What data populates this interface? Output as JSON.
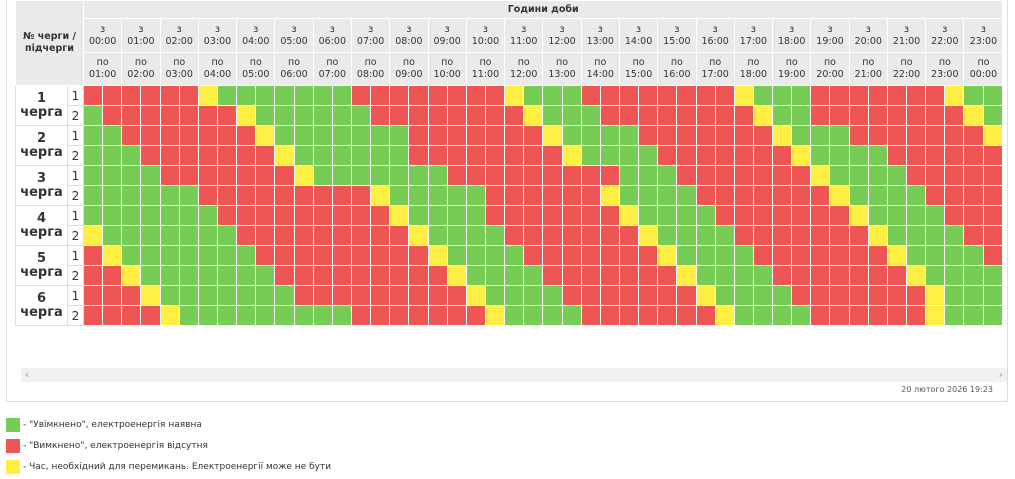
{
  "header": {
    "corner": "№ черги / підчерги",
    "title": "Години доби",
    "from_prefix": "з",
    "to_prefix": "по",
    "hours_from": [
      "00:00",
      "01:00",
      "02:00",
      "03:00",
      "04:00",
      "05:00",
      "06:00",
      "07:00",
      "08:00",
      "09:00",
      "10:00",
      "11:00",
      "12:00",
      "13:00",
      "14:00",
      "15:00",
      "16:00",
      "17:00",
      "18:00",
      "19:00",
      "20:00",
      "21:00",
      "22:00",
      "23:00"
    ],
    "hours_to": [
      "01:00",
      "02:00",
      "03:00",
      "04:00",
      "05:00",
      "06:00",
      "07:00",
      "08:00",
      "09:00",
      "10:00",
      "11:00",
      "12:00",
      "13:00",
      "14:00",
      "15:00",
      "16:00",
      "17:00",
      "18:00",
      "19:00",
      "20:00",
      "21:00",
      "22:00",
      "23:00",
      "00:00"
    ]
  },
  "queues": [
    {
      "label": "1 черга",
      "subqueues": [
        {
          "label": "1",
          "cells": [
            "#e55",
            "#e55",
            "#e55",
            "#e55",
            "#e55",
            "#e55",
            "#fe4",
            "#7c5",
            "#7c5",
            "#7c5",
            "#7c5",
            "#7c5",
            "#7c5",
            "#7c5",
            "#e55",
            "#e55",
            "#e55",
            "#e55",
            "#e55",
            "#e55",
            "#e55",
            "#e55",
            "#fe4",
            "#7c5",
            "#7c5",
            "#7c5",
            "#e55",
            "#e55",
            "#e55",
            "#e55",
            "#e55",
            "#e55",
            "#e55",
            "#e55",
            "#fe4",
            "#7c5",
            "#7c5",
            "#7c5",
            "#e55",
            "#e55",
            "#e55",
            "#e55",
            "#e55",
            "#e55",
            "#e55",
            "#fe4",
            "#7c5",
            "#7c5"
          ]
        },
        {
          "label": "2",
          "cells": [
            "#7c5",
            "#e55",
            "#e55",
            "#e55",
            "#e55",
            "#e55",
            "#e55",
            "#e55",
            "#fe4",
            "#7c5",
            "#7c5",
            "#7c5",
            "#7c5",
            "#7c5",
            "#7c5",
            "#e55",
            "#e55",
            "#e55",
            "#e55",
            "#e55",
            "#e55",
            "#e55",
            "#e55",
            "#fe4",
            "#7c5",
            "#7c5",
            "#7c5",
            "#e55",
            "#e55",
            "#e55",
            "#e55",
            "#e55",
            "#e55",
            "#e55",
            "#e55",
            "#fe4",
            "#7c5",
            "#7c5",
            "#e55",
            "#e55",
            "#e55",
            "#e55",
            "#e55",
            "#e55",
            "#e55",
            "#e55",
            "#fe4",
            "#7c5"
          ]
        }
      ]
    },
    {
      "label": "2 черга",
      "subqueues": [
        {
          "label": "1",
          "cells": [
            "#7c5",
            "#7c5",
            "#e55",
            "#e55",
            "#e55",
            "#e55",
            "#e55",
            "#e55",
            "#e55",
            "#fe4",
            "#7c5",
            "#7c5",
            "#7c5",
            "#7c5",
            "#7c5",
            "#7c5",
            "#7c5",
            "#e55",
            "#e55",
            "#e55",
            "#e55",
            "#e55",
            "#e55",
            "#e55",
            "#fe4",
            "#7c5",
            "#7c5",
            "#7c5",
            "#7c5",
            "#e55",
            "#e55",
            "#e55",
            "#e55",
            "#e55",
            "#e55",
            "#e55",
            "#fe4",
            "#7c5",
            "#7c5",
            "#7c5",
            "#e55",
            "#e55",
            "#e55",
            "#e55",
            "#e55",
            "#e55",
            "#e55",
            "#fe4"
          ]
        },
        {
          "label": "2",
          "cells": [
            "#7c5",
            "#7c5",
            "#7c5",
            "#e55",
            "#e55",
            "#e55",
            "#e55",
            "#e55",
            "#e55",
            "#e55",
            "#fe4",
            "#7c5",
            "#7c5",
            "#7c5",
            "#7c5",
            "#7c5",
            "#7c5",
            "#e55",
            "#e55",
            "#e55",
            "#e55",
            "#e55",
            "#e55",
            "#e55",
            "#e55",
            "#fe4",
            "#7c5",
            "#7c5",
            "#7c5",
            "#7c5",
            "#e55",
            "#e55",
            "#e55",
            "#e55",
            "#e55",
            "#e55",
            "#e55",
            "#fe4",
            "#7c5",
            "#7c5",
            "#7c5",
            "#7c5",
            "#e55",
            "#e55",
            "#e55",
            "#e55",
            "#e55",
            "#e55"
          ]
        }
      ]
    },
    {
      "label": "3 черга",
      "subqueues": [
        {
          "label": "1",
          "cells": [
            "#7c5",
            "#7c5",
            "#7c5",
            "#7c5",
            "#e55",
            "#e55",
            "#e55",
            "#e55",
            "#e55",
            "#e55",
            "#e55",
            "#fe4",
            "#7c5",
            "#7c5",
            "#7c5",
            "#7c5",
            "#7c5",
            "#7c5",
            "#7c5",
            "#e55",
            "#e55",
            "#e55",
            "#e55",
            "#e55",
            "#e55",
            "#e55",
            "#e55",
            "#e55",
            "#7c5",
            "#7c5",
            "#7c5",
            "#e55",
            "#e55",
            "#e55",
            "#e55",
            "#e55",
            "#e55",
            "#e55",
            "#fe4",
            "#7c5",
            "#7c5",
            "#7c5",
            "#7c5",
            "#e55",
            "#e55",
            "#e55",
            "#e55",
            "#e55"
          ]
        },
        {
          "label": "2",
          "cells": [
            "#7c5",
            "#7c5",
            "#7c5",
            "#7c5",
            "#7c5",
            "#7c5",
            "#e55",
            "#e55",
            "#e55",
            "#e55",
            "#e55",
            "#e55",
            "#e55",
            "#e55",
            "#e55",
            "#fe4",
            "#7c5",
            "#7c5",
            "#7c5",
            "#7c5",
            "#7c5",
            "#e55",
            "#e55",
            "#e55",
            "#e55",
            "#e55",
            "#e55",
            "#fe4",
            "#7c5",
            "#7c5",
            "#7c5",
            "#7c5",
            "#e55",
            "#e55",
            "#e55",
            "#e55",
            "#e55",
            "#e55",
            "#e55",
            "#fe4",
            "#7c5",
            "#7c5",
            "#7c5",
            "#7c5",
            "#e55",
            "#e55",
            "#e55",
            "#e55"
          ]
        }
      ]
    },
    {
      "label": "4 черга",
      "subqueues": [
        {
          "label": "1",
          "cells": [
            "#7c5",
            "#7c5",
            "#7c5",
            "#7c5",
            "#7c5",
            "#7c5",
            "#7c5",
            "#e55",
            "#e55",
            "#e55",
            "#e55",
            "#e55",
            "#e55",
            "#e55",
            "#e55",
            "#e55",
            "#fe4",
            "#7c5",
            "#7c5",
            "#7c5",
            "#7c5",
            "#e55",
            "#e55",
            "#e55",
            "#e55",
            "#e55",
            "#e55",
            "#e55",
            "#fe4",
            "#7c5",
            "#7c5",
            "#7c5",
            "#7c5",
            "#e55",
            "#e55",
            "#e55",
            "#e55",
            "#e55",
            "#e55",
            "#e55",
            "#fe4",
            "#7c5",
            "#7c5",
            "#7c5",
            "#7c5",
            "#e55",
            "#e55",
            "#e55"
          ]
        },
        {
          "label": "2",
          "cells": [
            "#fe4",
            "#7c5",
            "#7c5",
            "#7c5",
            "#7c5",
            "#7c5",
            "#7c5",
            "#7c5",
            "#e55",
            "#e55",
            "#e55",
            "#e55",
            "#e55",
            "#e55",
            "#e55",
            "#e55",
            "#e55",
            "#fe4",
            "#7c5",
            "#7c5",
            "#7c5",
            "#7c5",
            "#e55",
            "#e55",
            "#e55",
            "#e55",
            "#e55",
            "#e55",
            "#e55",
            "#fe4",
            "#7c5",
            "#7c5",
            "#7c5",
            "#7c5",
            "#e55",
            "#e55",
            "#e55",
            "#e55",
            "#e55",
            "#e55",
            "#e55",
            "#fe4",
            "#7c5",
            "#7c5",
            "#7c5",
            "#7c5",
            "#e55",
            "#e55"
          ]
        }
      ]
    },
    {
      "label": "5 черга",
      "subqueues": [
        {
          "label": "1",
          "cells": [
            "#e55",
            "#fe4",
            "#7c5",
            "#7c5",
            "#7c5",
            "#7c5",
            "#7c5",
            "#7c5",
            "#7c5",
            "#e55",
            "#e55",
            "#e55",
            "#e55",
            "#e55",
            "#e55",
            "#e55",
            "#e55",
            "#e55",
            "#fe4",
            "#7c5",
            "#7c5",
            "#7c5",
            "#7c5",
            "#e55",
            "#e55",
            "#e55",
            "#e55",
            "#e55",
            "#e55",
            "#e55",
            "#fe4",
            "#7c5",
            "#7c5",
            "#7c5",
            "#7c5",
            "#e55",
            "#e55",
            "#e55",
            "#e55",
            "#e55",
            "#e55",
            "#e55",
            "#fe4",
            "#7c5",
            "#7c5",
            "#7c5",
            "#7c5",
            "#e55"
          ]
        },
        {
          "label": "2",
          "cells": [
            "#e55",
            "#e55",
            "#fe4",
            "#7c5",
            "#7c5",
            "#7c5",
            "#7c5",
            "#7c5",
            "#7c5",
            "#7c5",
            "#e55",
            "#e55",
            "#e55",
            "#e55",
            "#e55",
            "#e55",
            "#e55",
            "#e55",
            "#e55",
            "#fe4",
            "#7c5",
            "#7c5",
            "#7c5",
            "#7c5",
            "#e55",
            "#e55",
            "#e55",
            "#e55",
            "#e55",
            "#e55",
            "#e55",
            "#fe4",
            "#7c5",
            "#7c5",
            "#7c5",
            "#7c5",
            "#e55",
            "#e55",
            "#e55",
            "#e55",
            "#e55",
            "#e55",
            "#e55",
            "#fe4",
            "#7c5",
            "#7c5",
            "#7c5",
            "#7c5"
          ]
        }
      ]
    },
    {
      "label": "6 черга",
      "subqueues": [
        {
          "label": "1",
          "cells": [
            "#e55",
            "#e55",
            "#e55",
            "#fe4",
            "#7c5",
            "#7c5",
            "#7c5",
            "#7c5",
            "#7c5",
            "#7c5",
            "#7c5",
            "#e55",
            "#e55",
            "#e55",
            "#e55",
            "#e55",
            "#e55",
            "#e55",
            "#e55",
            "#e55",
            "#fe4",
            "#7c5",
            "#7c5",
            "#7c5",
            "#7c5",
            "#e55",
            "#e55",
            "#e55",
            "#e55",
            "#e55",
            "#e55",
            "#e55",
            "#fe4",
            "#7c5",
            "#7c5",
            "#7c5",
            "#7c5",
            "#e55",
            "#e55",
            "#e55",
            "#e55",
            "#e55",
            "#e55",
            "#e55",
            "#fe4",
            "#7c5",
            "#7c5",
            "#7c5"
          ]
        },
        {
          "label": "2",
          "cells": [
            "#e55",
            "#e55",
            "#e55",
            "#e55",
            "#fe4",
            "#7c5",
            "#7c5",
            "#7c5",
            "#7c5",
            "#7c5",
            "#7c5",
            "#7c5",
            "#7c5",
            "#7c5",
            "#e55",
            "#e55",
            "#e55",
            "#e55",
            "#e55",
            "#e55",
            "#e55",
            "#fe4",
            "#7c5",
            "#7c5",
            "#7c5",
            "#7c5",
            "#e55",
            "#e55",
            "#e55",
            "#e55",
            "#e55",
            "#e55",
            "#e55",
            "#fe4",
            "#7c5",
            "#7c5",
            "#7c5",
            "#7c5",
            "#e55",
            "#e55",
            "#e55",
            "#e55",
            "#e55",
            "#e55",
            "#fe4",
            "#7c5",
            "#7c5",
            "#7c5"
          ]
        }
      ]
    }
  ],
  "timestamp": "20 лютого 2026 19:23",
  "legend": [
    {
      "color": "#7c5",
      "text": "- \"Увімкнено\", електроенергія наявна"
    },
    {
      "color": "#e55",
      "text": "- \"Вимкнено\", електроенергія відсутня"
    },
    {
      "color": "#fe4",
      "text": "- Час, необхідний для перемикань. Електроенергії може не бути"
    }
  ]
}
